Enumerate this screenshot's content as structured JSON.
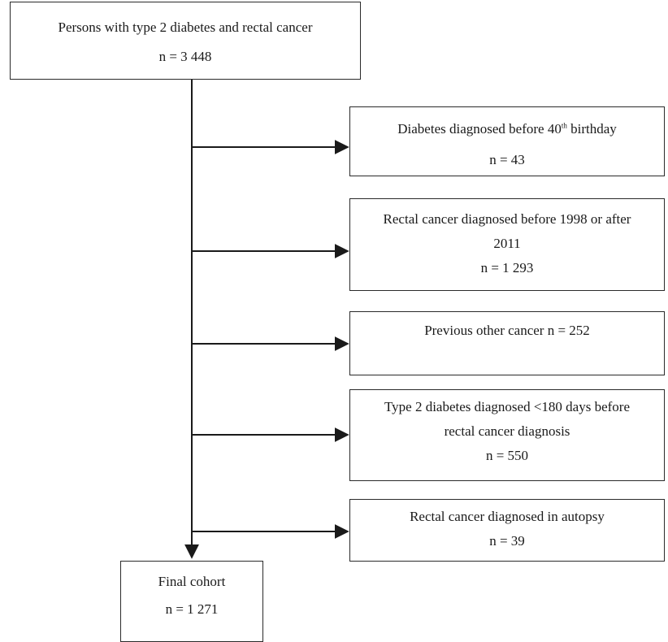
{
  "flowchart": {
    "start": {
      "title": "Persons with type 2 diabetes and rectal cancer",
      "count": "n = 3 448"
    },
    "exclusions": [
      {
        "line1_prefix": "Diabetes diagnosed before 40",
        "line1_sup": "th",
        "line1_suffix": " birthday",
        "count": "n = 43"
      },
      {
        "line1": "Rectal cancer diagnosed before 1998 or after",
        "line2": "2011",
        "count": "n = 1 293"
      },
      {
        "line1": "Previous other cancer n = 252"
      },
      {
        "line1": "Type 2 diabetes diagnosed <180 days before",
        "line2": "rectal cancer diagnosis",
        "count": "n = 550"
      },
      {
        "line1": "Rectal cancer diagnosed in autopsy",
        "count": "n = 39"
      }
    ],
    "final": {
      "title": "Final cohort",
      "count": "n = 1 271"
    }
  }
}
